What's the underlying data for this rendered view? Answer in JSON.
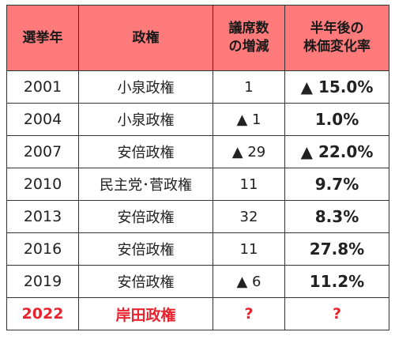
{
  "table": {
    "headers": {
      "year": "選挙年",
      "government": "政権",
      "seats_line1": "議席数",
      "seats_line2": "の増減",
      "stock_line1": "半年後の",
      "stock_line2": "株価変化率"
    },
    "rows": [
      {
        "year": "2001",
        "government": "小泉政権",
        "seats": "1",
        "stock": "▲ 15.0%"
      },
      {
        "year": "2004",
        "government": "小泉政権",
        "seats": "▲ 1",
        "stock": "1.0%"
      },
      {
        "year": "2007",
        "government": "安倍政権",
        "seats": "▲ 29",
        "stock": "▲ 22.0%"
      },
      {
        "year": "2010",
        "government": "民主党･菅政権",
        "seats": "11",
        "stock": "9.7%"
      },
      {
        "year": "2013",
        "government": "安倍政権",
        "seats": "32",
        "stock": "8.3%"
      },
      {
        "year": "2016",
        "government": "安倍政権",
        "seats": "11",
        "stock": "27.8%"
      },
      {
        "year": "2019",
        "government": "安倍政権",
        "seats": "▲ 6",
        "stock": "11.2%"
      }
    ],
    "highlight_row": {
      "year": "2022",
      "government": "岸田政権",
      "seats": "?",
      "stock": "?"
    }
  },
  "colors": {
    "header_background": "#ff7b7b",
    "highlight_text": "#e8232e",
    "border": "#333333"
  }
}
